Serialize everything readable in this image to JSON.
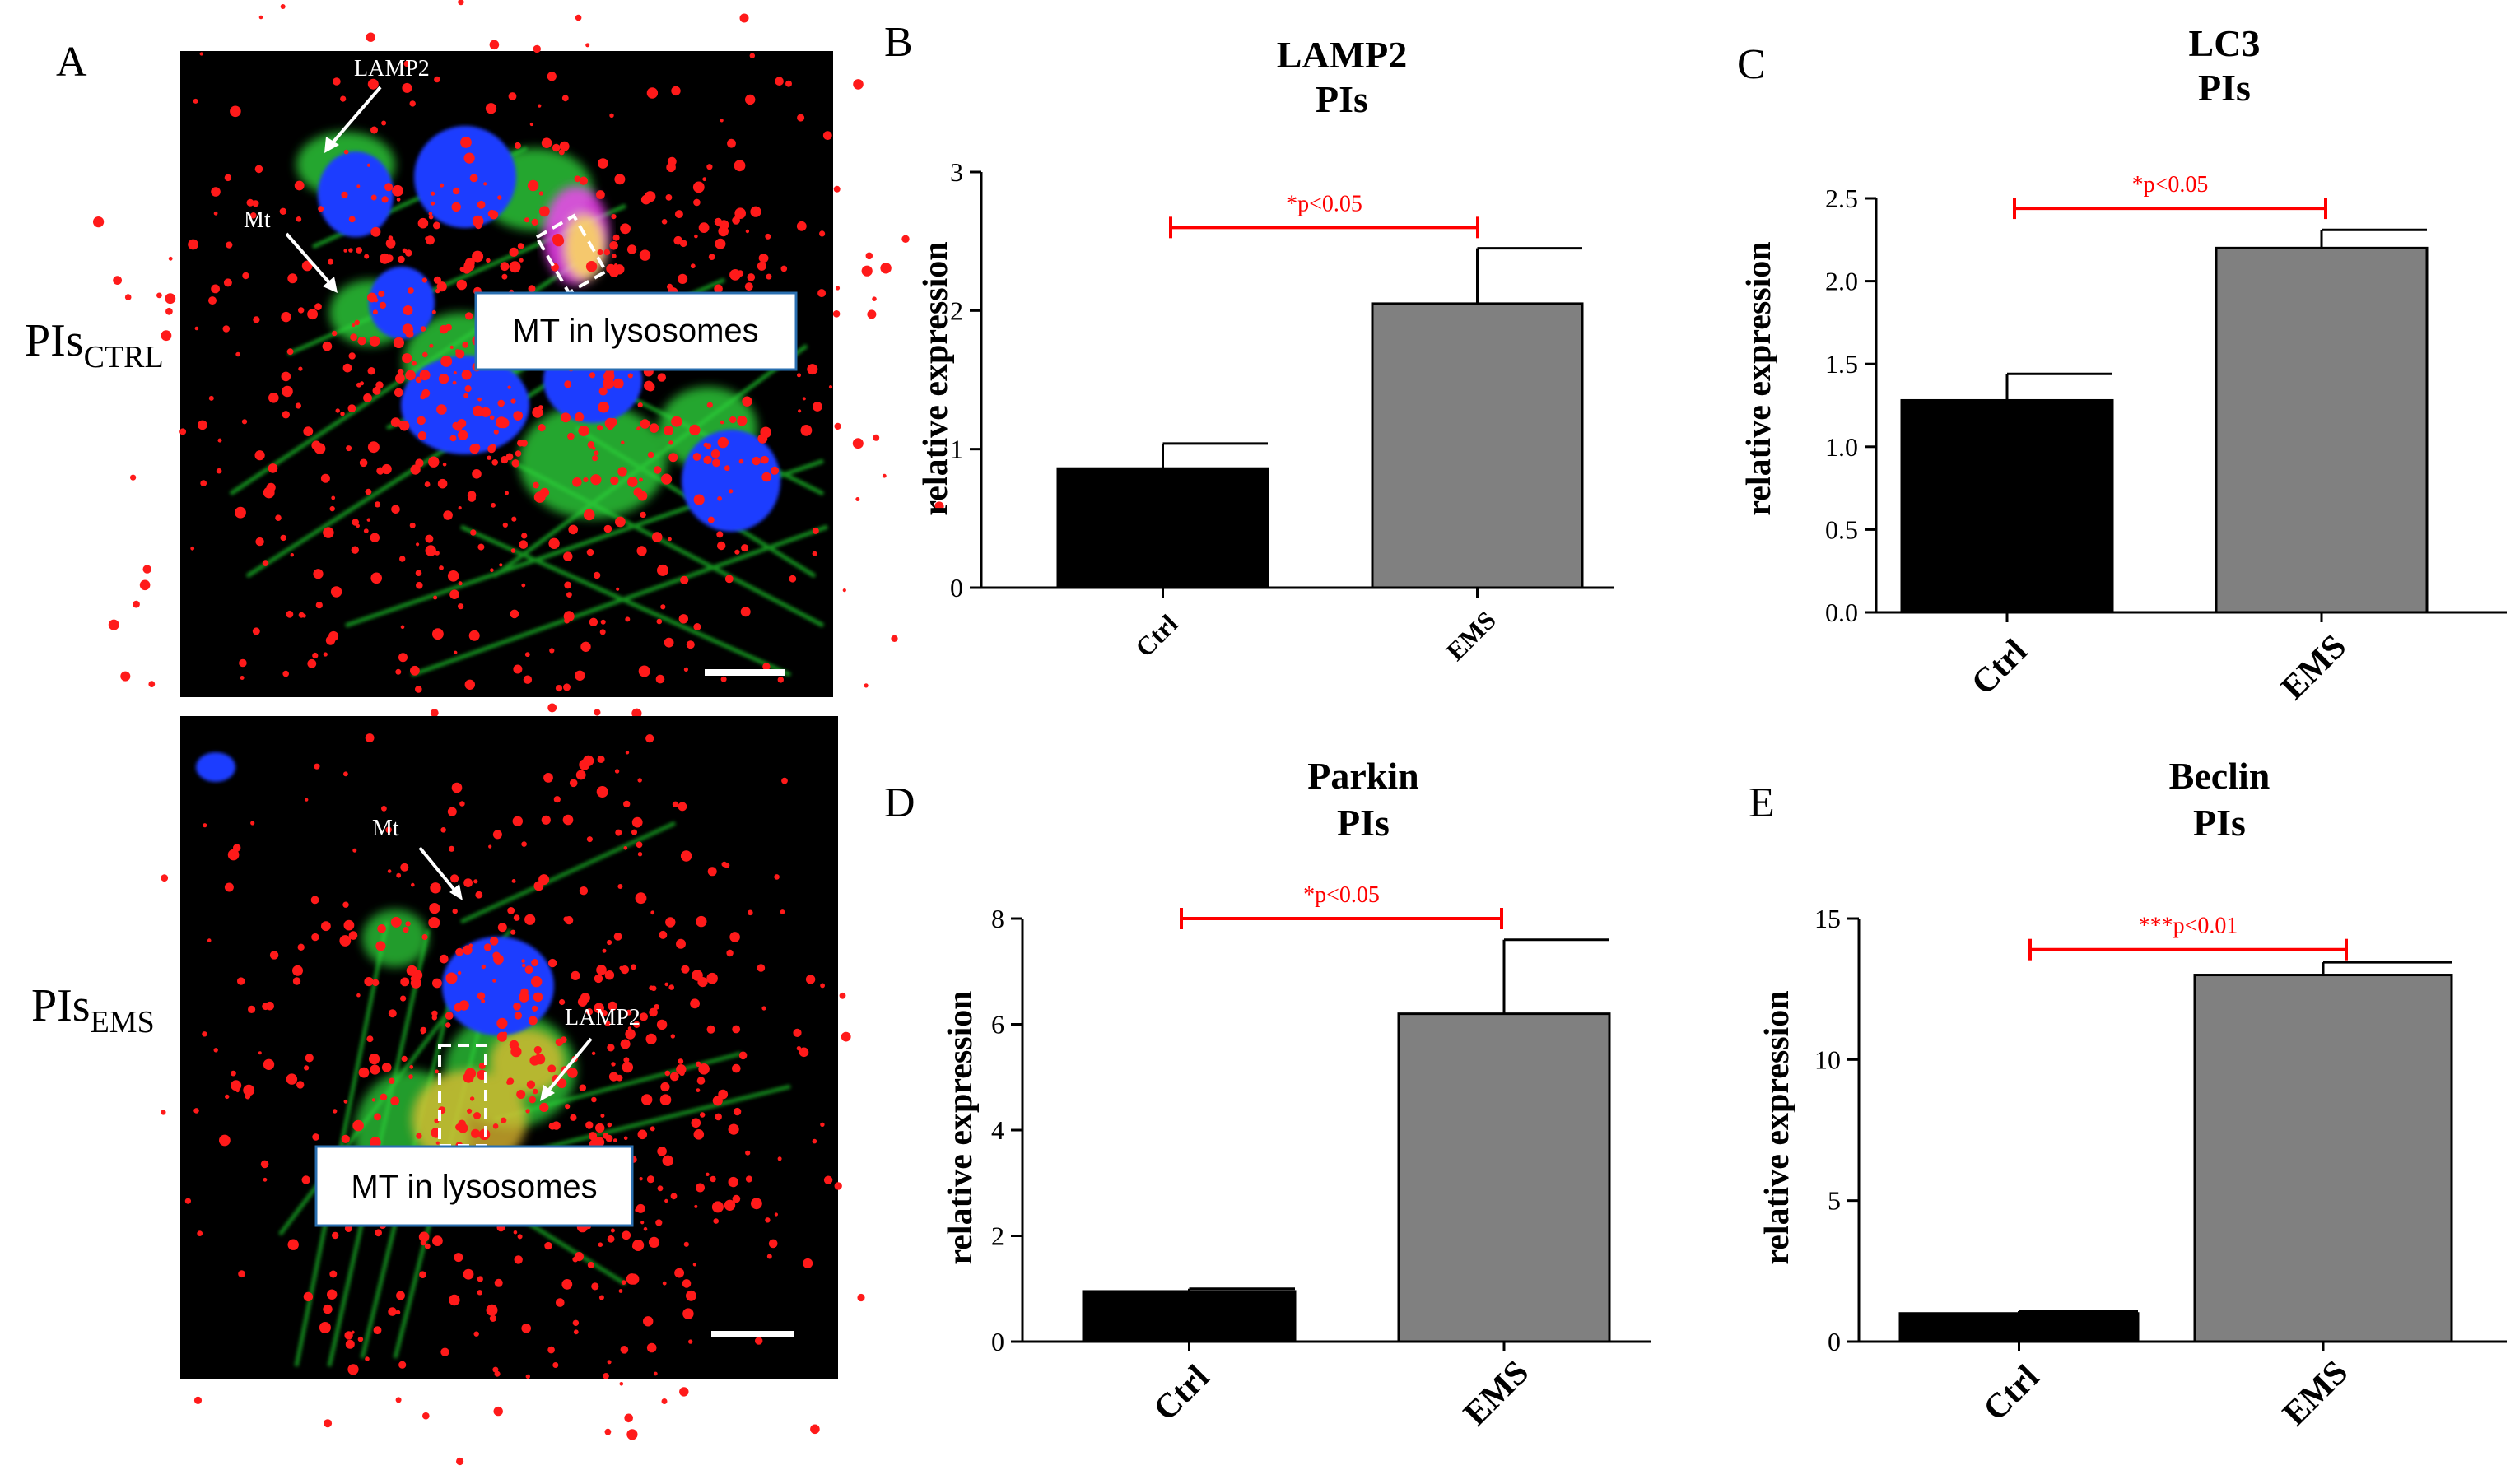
{
  "panelA": {
    "letter": "A",
    "top": {
      "label_main": "PIs",
      "label_sub": "CTRL",
      "arrow_labels": [
        "LAMP2",
        "Mt"
      ],
      "callout": "MT in lysosomes"
    },
    "bottom": {
      "label_main": "PIs",
      "label_sub": "EMS",
      "arrow_labels": [
        "Mt",
        "LAMP2"
      ],
      "callout": "MT in lysosomes"
    }
  },
  "colors": {
    "ctrl_bar": "#000000",
    "ems_bar": "#808080",
    "significance": "#ff0000",
    "axis": "#000000",
    "micrograph_bg": "#000000",
    "nucleus": "#1e3cff",
    "actin": "#1fbf2a",
    "mito": "#ff1a1a"
  },
  "chart_data": [
    {
      "panel": "B",
      "type": "bar",
      "title": [
        "LAMP2",
        "PIs"
      ],
      "ylabel": "relative expression",
      "categories": [
        "Ctrl",
        "EMS"
      ],
      "values": [
        0.86,
        2.05
      ],
      "errors": [
        0.18,
        0.4
      ],
      "ylim": [
        0,
        3
      ],
      "yticks": [
        "0",
        "1",
        "2",
        "3"
      ],
      "significance": "*p<0.05",
      "sig_level": 2.6
    },
    {
      "panel": "C",
      "type": "bar",
      "title": [
        "LC3",
        "PIs"
      ],
      "ylabel": "relative expression",
      "categories": [
        "Ctrl",
        "EMS"
      ],
      "values": [
        1.28,
        2.2
      ],
      "errors": [
        0.16,
        0.11
      ],
      "ylim": [
        0,
        2.5
      ],
      "yticks": [
        "0.0",
        "0.5",
        "1.0",
        "1.5",
        "2.0",
        "2.5"
      ],
      "significance": "*p<0.05",
      "sig_level": 2.44
    },
    {
      "panel": "D",
      "type": "bar",
      "title": [
        "Parkin",
        "PIs"
      ],
      "ylabel": "relative expression",
      "categories": [
        "Ctrl",
        "EMS"
      ],
      "values": [
        0.95,
        6.2
      ],
      "errors": [
        0.05,
        1.4
      ],
      "ylim": [
        0,
        8
      ],
      "yticks": [
        "0",
        "2",
        "4",
        "6",
        "8"
      ],
      "significance": "*p<0.05",
      "sig_level": 8.0
    },
    {
      "panel": "E",
      "type": "bar",
      "title": [
        "Beclin",
        "PIs"
      ],
      "ylabel": "relative expression",
      "categories": [
        "Ctrl",
        "EMS"
      ],
      "values": [
        1.0,
        13.0
      ],
      "errors": [
        0.08,
        0.45
      ],
      "ylim": [
        0,
        15
      ],
      "yticks": [
        "0",
        "5",
        "10",
        "15"
      ],
      "significance": "***p<0.01",
      "sig_level": 13.9
    }
  ]
}
